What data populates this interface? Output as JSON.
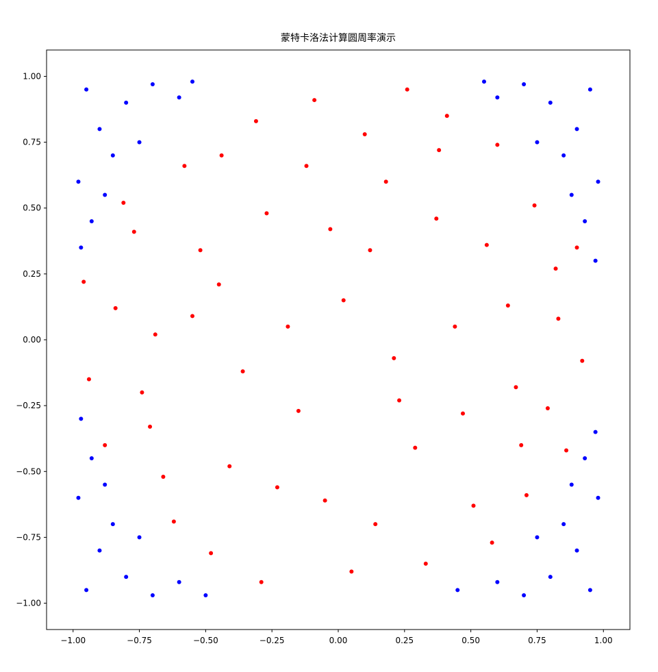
{
  "chart_data": {
    "type": "scatter",
    "title": "蒙特卡洛法计算圆周率演示",
    "xlim": [
      -1.1,
      1.1
    ],
    "ylim": [
      -1.1,
      1.1
    ],
    "xticks": [
      {
        "value": -1,
        "label": "−1.00"
      },
      {
        "value": -0.75,
        "label": "−0.75"
      },
      {
        "value": -0.5,
        "label": "−0.50"
      },
      {
        "value": -0.25,
        "label": "−0.25"
      },
      {
        "value": 0,
        "label": "0.00"
      },
      {
        "value": 0.25,
        "label": "0.25"
      },
      {
        "value": 0.5,
        "label": "0.50"
      },
      {
        "value": 0.75,
        "label": "0.75"
      },
      {
        "value": 1,
        "label": "1.00"
      }
    ],
    "yticks": [
      {
        "value": -1,
        "label": "−1.00"
      },
      {
        "value": -0.75,
        "label": "−0.75"
      },
      {
        "value": -0.5,
        "label": "−0.50"
      },
      {
        "value": -0.25,
        "label": "−0.25"
      },
      {
        "value": 0,
        "label": "0.00"
      },
      {
        "value": 0.25,
        "label": "0.25"
      },
      {
        "value": 0.5,
        "label": "0.50"
      },
      {
        "value": 0.75,
        "label": "0.75"
      },
      {
        "value": 1,
        "label": "1.00"
      }
    ],
    "grid": false,
    "series": [
      {
        "color": "#0000ff",
        "x": [
          -0.95,
          -0.9,
          -0.8,
          -0.7,
          -0.98,
          -0.93,
          -0.85,
          -0.6,
          -0.75,
          -0.97,
          -0.55,
          -0.88,
          0.95,
          0.9,
          0.8,
          0.7,
          0.98,
          0.93,
          0.85,
          0.6,
          0.75,
          0.97,
          0.55,
          0.88,
          -0.95,
          -0.9,
          -0.8,
          -0.7,
          -0.98,
          -0.93,
          -0.85,
          -0.6,
          -0.75,
          -0.97,
          -0.5,
          -0.88,
          0.95,
          0.9,
          0.8,
          0.7,
          0.98,
          0.93,
          0.85,
          0.6,
          0.75,
          0.97,
          0.45,
          0.88
        ],
        "y": [
          0.95,
          0.8,
          0.9,
          0.97,
          0.6,
          0.45,
          0.7,
          0.92,
          0.75,
          0.35,
          0.98,
          0.55,
          0.95,
          0.8,
          0.9,
          0.97,
          0.6,
          0.45,
          0.7,
          0.92,
          0.75,
          0.3,
          0.98,
          0.55,
          -0.95,
          -0.8,
          -0.9,
          -0.97,
          -0.6,
          -0.45,
          -0.7,
          -0.92,
          -0.75,
          -0.3,
          -0.97,
          -0.55,
          -0.95,
          -0.8,
          -0.9,
          -0.97,
          -0.6,
          -0.45,
          -0.7,
          -0.92,
          -0.75,
          -0.35,
          -0.95,
          -0.55
        ]
      },
      {
        "color": "#ff0000",
        "x": [
          0.12,
          -0.45,
          0.67,
          -0.23,
          0.38,
          -0.71,
          0.05,
          -0.09,
          0.82,
          -0.84,
          0.51,
          -0.58,
          0.29,
          -0.36,
          0.74,
          -0.62,
          0.18,
          -0.15,
          0.92,
          -0.94,
          0.44,
          -0.27,
          0.6,
          -0.48,
          0.02,
          0.33,
          -0.77,
          0.86,
          -0.05,
          0.56,
          -0.69,
          0.21,
          -0.31,
          0.71,
          -0.52,
          0.1,
          -0.88,
          0.47,
          -0.19,
          0.64,
          -0.41,
          0.26,
          -0.66,
          0.79,
          -0.12,
          0.37,
          -0.81,
          0.14,
          -0.55,
          0.9,
          -0.29,
          0.58,
          -0.03,
          0.41,
          -0.74,
          0.69,
          -0.44,
          0.23,
          -0.96,
          0.83
        ],
        "y": [
          0.34,
          0.21,
          -0.18,
          -0.56,
          0.72,
          -0.33,
          -0.88,
          0.91,
          0.27,
          0.12,
          -0.63,
          0.66,
          -0.41,
          -0.12,
          0.51,
          -0.69,
          0.6,
          -0.27,
          -0.08,
          -0.15,
          0.05,
          0.48,
          0.74,
          -0.81,
          0.15,
          -0.85,
          0.41,
          -0.42,
          -0.61,
          0.36,
          0.02,
          -0.07,
          0.83,
          -0.59,
          0.34,
          0.78,
          -0.4,
          -0.28,
          0.05,
          0.13,
          -0.48,
          0.95,
          -0.52,
          -0.26,
          0.66,
          0.46,
          0.52,
          -0.7,
          0.09,
          0.35,
          -0.92,
          -0.77,
          0.42,
          0.85,
          -0.2,
          -0.4,
          0.7,
          -0.23,
          0.22,
          0.08
        ]
      }
    ]
  }
}
